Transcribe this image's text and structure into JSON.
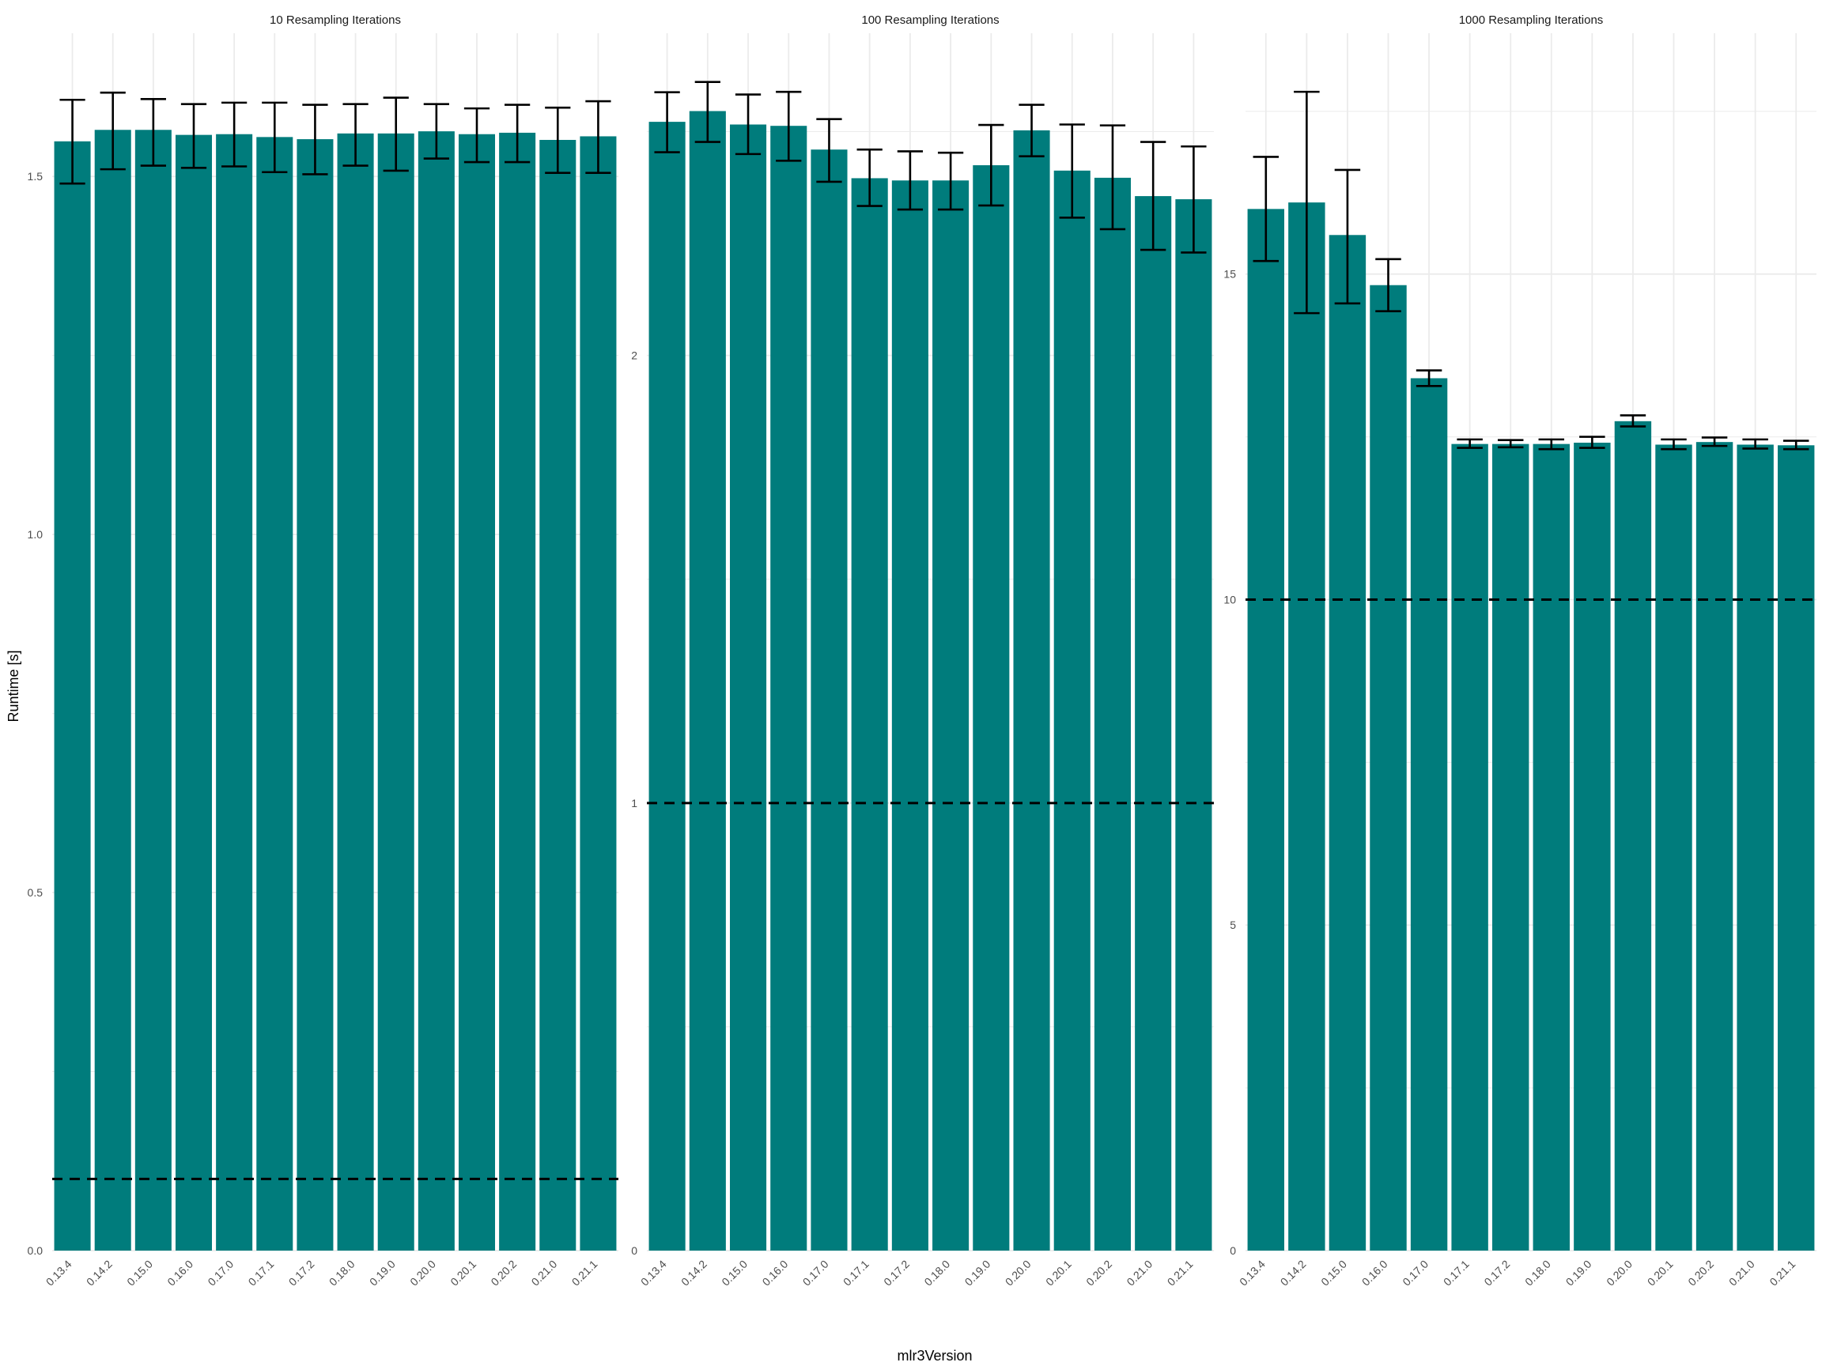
{
  "ylabel": "Runtime [s]",
  "xlabel": "mlr3Version",
  "colors": {
    "bar": "#007c7c",
    "grid": "#ebebeb",
    "errorbar": "#000000",
    "reference": "#000000"
  },
  "chart_data": [
    {
      "type": "bar",
      "title": "10 Resampling Iterations",
      "categories": [
        "0.13.4",
        "0.14.2",
        "0.15.0",
        "0.16.0",
        "0.17.0",
        "0.17.1",
        "0.17.2",
        "0.18.0",
        "0.19.0",
        "0.20.0",
        "0.20.1",
        "0.20.2",
        "0.21.0",
        "0.21.1"
      ],
      "values": [
        1.549,
        1.565,
        1.565,
        1.558,
        1.559,
        1.555,
        1.552,
        1.56,
        1.56,
        1.563,
        1.559,
        1.561,
        1.551,
        1.556
      ],
      "error_low": [
        1.49,
        1.51,
        1.515,
        1.512,
        1.514,
        1.506,
        1.503,
        1.515,
        1.508,
        1.525,
        1.52,
        1.52,
        1.505,
        1.505
      ],
      "error_high": [
        1.607,
        1.617,
        1.608,
        1.601,
        1.603,
        1.603,
        1.6,
        1.601,
        1.61,
        1.601,
        1.595,
        1.6,
        1.596,
        1.605
      ],
      "reference_line": 0.1,
      "ylim": [
        0,
        1.7
      ],
      "y_ticks": [
        0.0,
        0.5,
        1.0,
        1.5
      ],
      "y_tick_labels": [
        "0.0",
        "0.5",
        "1.0",
        "1.5"
      ],
      "grid": true
    },
    {
      "type": "bar",
      "title": "100 Resampling Iterations",
      "categories": [
        "0.13.4",
        "0.14.2",
        "0.15.0",
        "0.16.0",
        "0.17.0",
        "0.17.1",
        "0.17.2",
        "0.18.0",
        "0.19.0",
        "0.20.0",
        "0.20.1",
        "0.20.2",
        "0.21.0",
        "0.21.1"
      ],
      "values": [
        2.522,
        2.546,
        2.516,
        2.513,
        2.46,
        2.396,
        2.391,
        2.391,
        2.425,
        2.503,
        2.413,
        2.397,
        2.356,
        2.349
      ],
      "error_low": [
        2.454,
        2.477,
        2.45,
        2.435,
        2.388,
        2.334,
        2.326,
        2.326,
        2.335,
        2.445,
        2.308,
        2.282,
        2.236,
        2.23
      ],
      "error_high": [
        2.588,
        2.611,
        2.583,
        2.589,
        2.528,
        2.46,
        2.456,
        2.453,
        2.515,
        2.56,
        2.516,
        2.514,
        2.477,
        2.467
      ],
      "reference_line": 1,
      "ylim": [
        0,
        2.72
      ],
      "y_ticks": [
        0,
        1,
        2
      ],
      "y_tick_labels": [
        "0",
        "1",
        "2"
      ],
      "grid": true
    },
    {
      "type": "bar",
      "title": "1000 Resampling Iterations",
      "categories": [
        "0.13.4",
        "0.14.2",
        "0.15.0",
        "0.16.0",
        "0.17.0",
        "0.17.1",
        "0.17.2",
        "0.18.0",
        "0.19.0",
        "0.20.0",
        "0.20.1",
        "0.20.2",
        "0.21.0",
        "0.21.1"
      ],
      "values": [
        16.0,
        16.1,
        15.6,
        14.83,
        13.4,
        12.39,
        12.39,
        12.39,
        12.41,
        12.74,
        12.38,
        12.42,
        12.38,
        12.37
      ],
      "error_low": [
        15.2,
        14.4,
        14.55,
        14.43,
        13.28,
        12.33,
        12.34,
        12.31,
        12.33,
        12.66,
        12.31,
        12.36,
        12.32,
        12.31
      ],
      "error_high": [
        16.8,
        17.8,
        16.6,
        15.23,
        13.52,
        12.46,
        12.45,
        12.46,
        12.5,
        12.83,
        12.46,
        12.49,
        12.46,
        12.44
      ],
      "reference_line": 10,
      "ylim": [
        0,
        18.7
      ],
      "y_ticks": [
        0,
        5,
        10,
        15
      ],
      "y_tick_labels": [
        "0",
        "5",
        "10",
        "15"
      ],
      "grid": true
    }
  ]
}
